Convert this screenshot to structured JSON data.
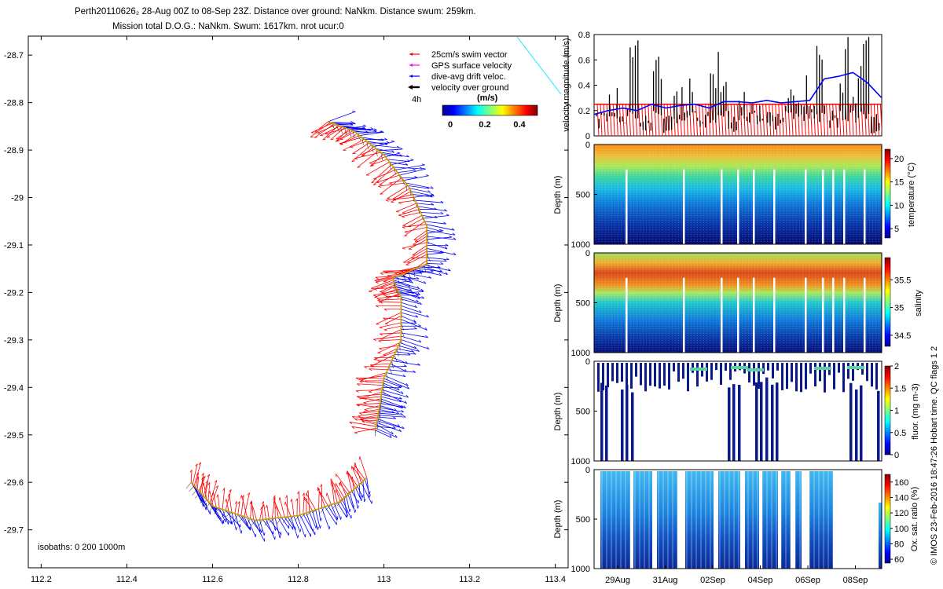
{
  "header": {
    "line1": "Perth20110626₂ 28-Aug 00Z to 08-Sep 23Z. Distance over ground: NaNkm. Distance swum: 259km.",
    "line2": "Mission total D.O.G.: NaNkm. Swum: 1617km. nrot ucur:0"
  },
  "chart_data": [
    {
      "type": "scatter",
      "name": "track-map",
      "x_ticks": [
        "112.2",
        "112.4",
        "112.6",
        "112.8",
        "113",
        "113.2",
        "113.4"
      ],
      "y_ticks": [
        "-28.7",
        "-28.8",
        "-28.9",
        "-29",
        "-29.1",
        "-29.2",
        "-29.3",
        "-29.4",
        "-29.5",
        "-29.6",
        "-29.7"
      ],
      "xlim": [
        112.17,
        113.43
      ],
      "ylim": [
        -29.78,
        -28.66
      ],
      "legend": {
        "items": [
          {
            "label": "25cm/s swim vector",
            "color": "#ff0000"
          },
          {
            "label": "GPS surface velocity",
            "color": "#ff00ff"
          },
          {
            "label": "dive-avg drift veloc.",
            "color": "#0000ff"
          },
          {
            "label": "velocity over ground",
            "color": "#000000"
          }
        ],
        "extra": "4h",
        "colorbar_title": "(m/s)",
        "colorbar_ticks": [
          "0",
          "0.2",
          "0.4"
        ]
      },
      "isobaths": "isobaths: 0   200   1000m",
      "track": [
        {
          "lon": 112.87,
          "lat": -28.84
        },
        {
          "lon": 112.93,
          "lat": -28.86
        },
        {
          "lon": 113.0,
          "lat": -28.91
        },
        {
          "lon": 113.06,
          "lat": -28.98
        },
        {
          "lon": 113.1,
          "lat": -29.06
        },
        {
          "lon": 113.1,
          "lat": -29.14
        },
        {
          "lon": 113.02,
          "lat": -29.17
        },
        {
          "lon": 113.04,
          "lat": -29.21
        },
        {
          "lon": 113.04,
          "lat": -29.3
        },
        {
          "lon": 113.0,
          "lat": -29.38
        },
        {
          "lon": 112.99,
          "lat": -29.44
        },
        {
          "lon": 112.98,
          "lat": -29.49
        }
      ],
      "track2": [
        {
          "lon": 112.55,
          "lat": -29.6
        },
        {
          "lon": 112.6,
          "lat": -29.65
        },
        {
          "lon": 112.7,
          "lat": -29.68
        },
        {
          "lon": 112.8,
          "lat": -29.67
        },
        {
          "lon": 112.9,
          "lat": -29.64
        },
        {
          "lon": 112.96,
          "lat": -29.59
        }
      ]
    },
    {
      "type": "line",
      "name": "velocity",
      "ylabel": "velocity magnitude (m/s)",
      "y_ticks": [
        "0",
        "0.2",
        "0.4",
        "0.6",
        "0.8"
      ],
      "ylim": [
        0,
        0.8
      ],
      "x_ticks": [
        "29Aug",
        "31Aug",
        "02Sep",
        "04Sep",
        "06Sep",
        "08Sep"
      ],
      "series": [
        {
          "name": "swim",
          "color": "#ff0000",
          "value": 0.25
        },
        {
          "name": "dive-avg drift",
          "color": "#0000ff",
          "x": [
            0,
            0.05,
            0.1,
            0.15,
            0.2,
            0.25,
            0.3,
            0.35,
            0.4,
            0.45,
            0.5,
            0.55,
            0.6,
            0.65,
            0.7,
            0.75,
            0.8,
            0.85,
            0.9,
            0.95,
            1.0
          ],
          "values": [
            0.17,
            0.2,
            0.22,
            0.2,
            0.25,
            0.22,
            0.24,
            0.25,
            0.22,
            0.27,
            0.27,
            0.26,
            0.28,
            0.26,
            0.27,
            0.28,
            0.45,
            0.47,
            0.5,
            0.42,
            0.3
          ]
        },
        {
          "name": "over ground",
          "color": "#000000",
          "x": [
            0.0,
            0.04,
            0.08,
            0.12,
            0.16,
            0.2,
            0.24,
            0.28,
            0.32,
            0.36,
            0.4,
            0.44,
            0.48,
            0.52,
            0.56,
            0.6,
            0.64,
            0.68,
            0.72,
            0.76,
            0.8,
            0.84,
            0.88,
            0.92,
            0.96,
            1.0
          ],
          "values": [
            0.15,
            0.45,
            0.2,
            0.62,
            0.1,
            0.5,
            0.05,
            0.3,
            0.45,
            0.1,
            0.4,
            0.55,
            0.05,
            0.3,
            0.2,
            0.15,
            0.1,
            0.3,
            0.25,
            0.4,
            0.6,
            0.15,
            0.7,
            0.4,
            0.75,
            0.05
          ]
        }
      ]
    },
    {
      "type": "heatmap",
      "name": "temperature",
      "ylabel": "Depth (m)",
      "y_ticks": [
        "0",
        "500",
        "1000"
      ],
      "colorbar_label": "temperature (°C)",
      "colorbar_ticks": [
        "20",
        "15",
        "10",
        "5"
      ],
      "clim": [
        3,
        22
      ]
    },
    {
      "type": "heatmap",
      "name": "salinity",
      "ylabel": "Depth (m)",
      "y_ticks": [
        "0",
        "500",
        "1000"
      ],
      "colorbar_label": "salinity",
      "colorbar_ticks": [
        "35.5",
        "35",
        "34.5"
      ],
      "clim": [
        34.3,
        35.9
      ]
    },
    {
      "type": "heatmap",
      "name": "fluorescence",
      "ylabel": "Depth (m)",
      "y_ticks": [
        "0",
        "500",
        "1000"
      ],
      "colorbar_label": "fluor. (mg m-3)",
      "colorbar_ticks": [
        "2",
        "1.5",
        "1",
        "0.5",
        "0"
      ],
      "clim": [
        0,
        2
      ]
    },
    {
      "type": "heatmap",
      "name": "oxygen",
      "ylabel": "Depth (m)",
      "y_ticks": [
        "0",
        "500",
        "1000"
      ],
      "colorbar_label": "Ox. sat. ratio (%)",
      "colorbar_ticks": [
        "160",
        "140",
        "120",
        "100",
        "80",
        "60"
      ],
      "clim": [
        55,
        170
      ],
      "x_ticks": [
        "29Aug",
        "31Aug",
        "02Sep",
        "04Sep",
        "06Sep",
        "08Sep"
      ]
    }
  ],
  "footer": {
    "side_note": "© IMOS 23-Feb-2016 18:47:26 Hobart time. QC flags 1  2"
  }
}
